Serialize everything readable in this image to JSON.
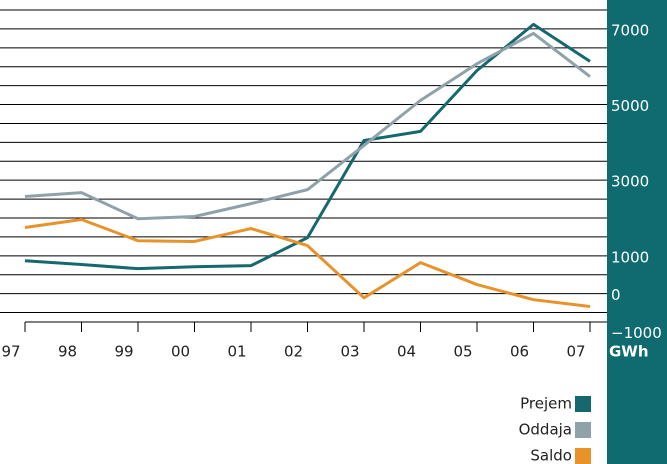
{
  "chart_data": {
    "type": "line",
    "categories": [
      "97",
      "98",
      "99",
      "00",
      "01",
      "02",
      "03",
      "04",
      "05",
      "06",
      "07"
    ],
    "unit": "GWh",
    "series": [
      {
        "name": "Prejem",
        "color": "#15696e",
        "values": [
          870,
          770,
          660,
          710,
          740,
          1480,
          4050,
          4290,
          5900,
          7120,
          6140
        ]
      },
      {
        "name": "Oddaja",
        "color": "#8fa2aa",
        "values": [
          2570,
          2670,
          1980,
          2040,
          2380,
          2750,
          3920,
          5110,
          6080,
          6880,
          5740
        ]
      },
      {
        "name": "Saldo",
        "color": "#e8922a",
        "values": [
          1750,
          1960,
          1400,
          1380,
          1720,
          1270,
          -110,
          820,
          240,
          -160,
          -340
        ]
      }
    ],
    "ylim": [
      -750,
      7500
    ],
    "yticks": [
      {
        "value": -1000,
        "label": "−1000"
      },
      0,
      1000,
      3000,
      5000,
      7000
    ],
    "grid_lines": [
      -500,
      0,
      500,
      1000,
      1500,
      2000,
      2500,
      3000,
      3500,
      4000,
      4500,
      5000,
      5500,
      6000,
      6500,
      7000,
      7500
    ],
    "grid": true,
    "legend": "bottom-right"
  }
}
